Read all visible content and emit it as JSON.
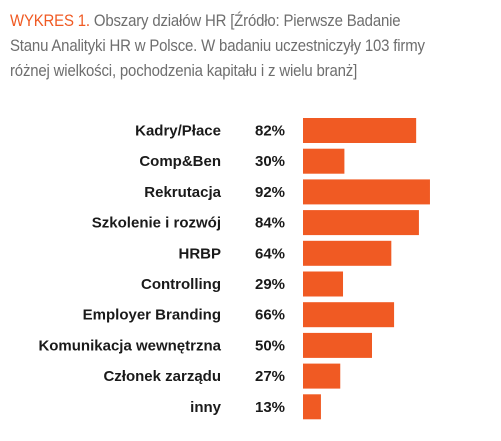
{
  "figure": {
    "prefix": "WYKRES 1.",
    "caption": " Obszary działów HR [Źródło: Pierwsze Badanie Stanu Analityki HR w Polsce. W badaniu uczestniczyły 103 firmy różnej wielkości, pochodzenia kapitału i z wielu branż]",
    "accent_color": "#f05a23",
    "text_color": "#6e6e6e"
  },
  "chart_data": {
    "type": "bar",
    "orientation": "horizontal",
    "categories": [
      "Kadry/Płace",
      "Comp&Ben",
      "Rekrutacja",
      "Szkolenie i rozwój",
      "HRBP",
      "Controlling",
      "Employer Branding",
      "Komunikacja wewnętrzna",
      "Członek zarządu",
      "inny"
    ],
    "values": [
      82,
      30,
      92,
      84,
      64,
      29,
      66,
      50,
      27,
      13
    ],
    "value_labels": [
      "82%",
      "30%",
      "92%",
      "84%",
      "64%",
      "29%",
      "66%",
      "50%",
      "27%",
      "13%"
    ],
    "unit": "%",
    "bar_color": "#f05a23",
    "grid": false,
    "legend": false
  }
}
